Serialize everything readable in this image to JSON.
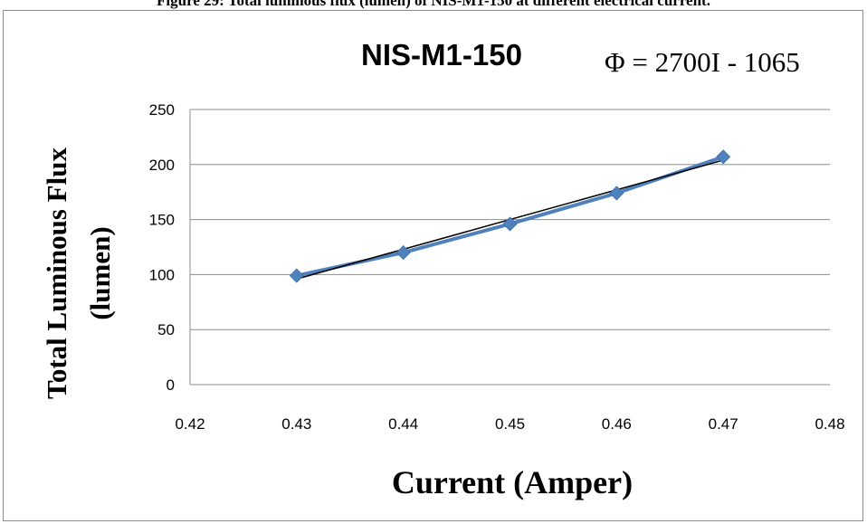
{
  "caption": "Figure 29: Total luminous flux (lumen) of NIS-M1-150 at different electrical current.",
  "chart_data": {
    "type": "scatter",
    "title": "NIS-M1-150",
    "equation": "Φ = 2700I - 1065",
    "xlabel": "Current (Amper)",
    "ylabel_lines": [
      "Total Luminous Flux",
      "(lumen)"
    ],
    "xlim": [
      0.42,
      0.48
    ],
    "ylim": [
      0,
      250
    ],
    "x_ticks": [
      "0.42",
      "0.43",
      "0.44",
      "0.45",
      "0.46",
      "0.47",
      "0.48"
    ],
    "y_ticks": [
      "0",
      "50",
      "100",
      "150",
      "200",
      "250"
    ],
    "grid": "horizontal",
    "legend": "none",
    "series": [
      {
        "x": [
          0.43,
          0.44,
          0.45,
          0.46,
          0.47
        ],
        "y": [
          99,
          120,
          146,
          174,
          207
        ],
        "color": "#4f81bd",
        "marker": "diamond"
      }
    ],
    "trendline": {
      "slope": 2700,
      "intercept": -1065,
      "x_range": [
        0.43,
        0.47
      ],
      "color": "#000000"
    }
  }
}
